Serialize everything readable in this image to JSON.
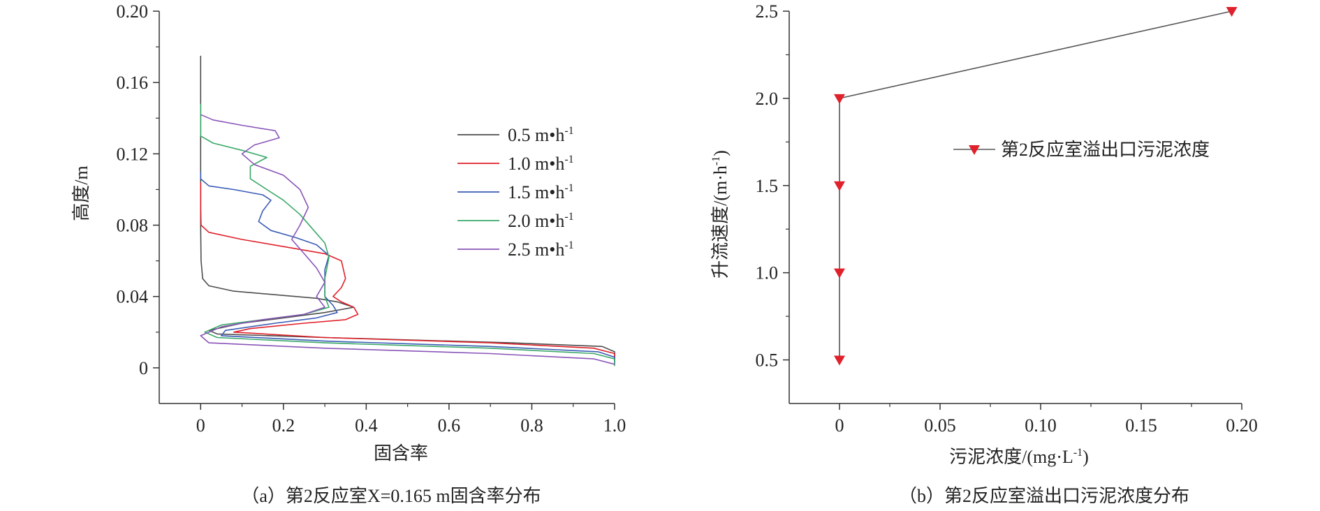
{
  "chart_data": [
    {
      "type": "line",
      "xlabel": "固含率",
      "ylabel": "高度/m",
      "xlim": [
        -0.1,
        1.0
      ],
      "ylim": [
        -0.02,
        0.2
      ],
      "xticks": [
        {
          "v": 0,
          "label": "0"
        },
        {
          "v": 0.2,
          "label": "0.2"
        },
        {
          "v": 0.4,
          "label": "0.4"
        },
        {
          "v": 0.6,
          "label": "0.6"
        },
        {
          "v": 0.8,
          "label": "0.8"
        },
        {
          "v": 1.0,
          "label": "1.0"
        }
      ],
      "yticks": [
        {
          "v": 0,
          "label": "0"
        },
        {
          "v": 0.04,
          "label": "0.04"
        },
        {
          "v": 0.08,
          "label": "0.08"
        },
        {
          "v": 0.12,
          "label": "0.12"
        },
        {
          "v": 0.16,
          "label": "0.16"
        },
        {
          "v": 0.2,
          "label": "0.20"
        }
      ],
      "legend_position": "top-right",
      "series": [
        {
          "name": "0.5 m•h",
          "name_sup": "-1",
          "color": "#4d4d4d",
          "points": [
            [
              0,
              0.175
            ],
            [
              0,
              0.12
            ],
            [
              0,
              0.08
            ],
            [
              0.001,
              0.06
            ],
            [
              0.005,
              0.05
            ],
            [
              0.02,
              0.046
            ],
            [
              0.08,
              0.043
            ],
            [
              0.18,
              0.041
            ],
            [
              0.28,
              0.039
            ],
            [
              0.33,
              0.037
            ],
            [
              0.37,
              0.034
            ],
            [
              0.3,
              0.031
            ],
            [
              0.2,
              0.028
            ],
            [
              0.1,
              0.025
            ],
            [
              0.02,
              0.021
            ],
            [
              0.04,
              0.019
            ],
            [
              0.3,
              0.017
            ],
            [
              0.75,
              0.014
            ],
            [
              0.97,
              0.012
            ],
            [
              1.0,
              0.009
            ],
            [
              1.0,
              0.003
            ]
          ]
        },
        {
          "name": "1.0 m•h",
          "name_sup": "-1",
          "color": "#e0202a",
          "points": [
            [
              0,
              0.104
            ],
            [
              0,
              0.09
            ],
            [
              0.001,
              0.08
            ],
            [
              0.02,
              0.076
            ],
            [
              0.1,
              0.072
            ],
            [
              0.2,
              0.068
            ],
            [
              0.3,
              0.064
            ],
            [
              0.34,
              0.06
            ],
            [
              0.345,
              0.055
            ],
            [
              0.35,
              0.05
            ],
            [
              0.34,
              0.045
            ],
            [
              0.32,
              0.04
            ],
            [
              0.34,
              0.037
            ],
            [
              0.37,
              0.034
            ],
            [
              0.38,
              0.03
            ],
            [
              0.35,
              0.027
            ],
            [
              0.25,
              0.025
            ],
            [
              0.12,
              0.022
            ],
            [
              0.08,
              0.02
            ],
            [
              0.3,
              0.017
            ],
            [
              0.7,
              0.014
            ],
            [
              0.95,
              0.011
            ],
            [
              1.0,
              0.008
            ],
            [
              1.0,
              0.004
            ]
          ]
        },
        {
          "name": "1.5 m•h",
          "name_sup": "-1",
          "color": "#3a5cb5",
          "points": [
            [
              0,
              0.11
            ],
            [
              0,
              0.106
            ],
            [
              0.02,
              0.102
            ],
            [
              0.08,
              0.1
            ],
            [
              0.15,
              0.097
            ],
            [
              0.17,
              0.094
            ],
            [
              0.15,
              0.088
            ],
            [
              0.14,
              0.082
            ],
            [
              0.17,
              0.077
            ],
            [
              0.23,
              0.073
            ],
            [
              0.28,
              0.069
            ],
            [
              0.31,
              0.063
            ],
            [
              0.3,
              0.055
            ],
            [
              0.3,
              0.045
            ],
            [
              0.3,
              0.04
            ],
            [
              0.32,
              0.035
            ],
            [
              0.33,
              0.031
            ],
            [
              0.28,
              0.028
            ],
            [
              0.18,
              0.025
            ],
            [
              0.06,
              0.021
            ],
            [
              0.05,
              0.018
            ],
            [
              0.3,
              0.015
            ],
            [
              0.7,
              0.012
            ],
            [
              0.96,
              0.009
            ],
            [
              1.0,
              0.006
            ],
            [
              1.0,
              0.002
            ]
          ]
        },
        {
          "name": "2.0 m•h",
          "name_sup": "-1",
          "color": "#3aa868",
          "points": [
            [
              0,
              0.148
            ],
            [
              0,
              0.135
            ],
            [
              0,
              0.13
            ],
            [
              0.03,
              0.126
            ],
            [
              0.1,
              0.122
            ],
            [
              0.16,
              0.118
            ],
            [
              0.12,
              0.113
            ],
            [
              0.12,
              0.106
            ],
            [
              0.16,
              0.1
            ],
            [
              0.2,
              0.094
            ],
            [
              0.24,
              0.086
            ],
            [
              0.27,
              0.078
            ],
            [
              0.3,
              0.07
            ],
            [
              0.31,
              0.062
            ],
            [
              0.3,
              0.05
            ],
            [
              0.3,
              0.04
            ],
            [
              0.31,
              0.034
            ],
            [
              0.25,
              0.03
            ],
            [
              0.15,
              0.027
            ],
            [
              0.05,
              0.024
            ],
            [
              0.01,
              0.02
            ],
            [
              0.04,
              0.017
            ],
            [
              0.3,
              0.014
            ],
            [
              0.7,
              0.011
            ],
            [
              0.95,
              0.008
            ],
            [
              1.0,
              0.005
            ],
            [
              1.0,
              0.001
            ]
          ]
        },
        {
          "name": "2.5 m•h",
          "name_sup": "-1",
          "color": "#8a55b8",
          "points": [
            [
              0,
              0.142
            ],
            [
              0.03,
              0.139
            ],
            [
              0.1,
              0.136
            ],
            [
              0.18,
              0.133
            ],
            [
              0.19,
              0.129
            ],
            [
              0.13,
              0.125
            ],
            [
              0.1,
              0.12
            ],
            [
              0.13,
              0.114
            ],
            [
              0.2,
              0.108
            ],
            [
              0.24,
              0.1
            ],
            [
              0.26,
              0.09
            ],
            [
              0.24,
              0.08
            ],
            [
              0.22,
              0.072
            ],
            [
              0.25,
              0.064
            ],
            [
              0.28,
              0.056
            ],
            [
              0.3,
              0.048
            ],
            [
              0.28,
              0.04
            ],
            [
              0.3,
              0.034
            ],
            [
              0.25,
              0.03
            ],
            [
              0.15,
              0.027
            ],
            [
              0.05,
              0.023
            ],
            [
              0,
              0.018
            ],
            [
              0.02,
              0.014
            ],
            [
              0.3,
              0.011
            ],
            [
              0.7,
              0.008
            ],
            [
              0.95,
              0.005
            ],
            [
              1.0,
              0.002
            ]
          ]
        }
      ]
    },
    {
      "type": "line",
      "xlabel": "污泥浓度/(mg·L",
      "xlabel_sup": "-1",
      "xlabel_end": ")",
      "ylabel": "升流速度/(m·h",
      "ylabel_sup": "-1",
      "ylabel_end": ")",
      "xlim": [
        -0.025,
        0.2
      ],
      "ylim": [
        0.25,
        2.5
      ],
      "xticks": [
        {
          "v": 0,
          "label": "0"
        },
        {
          "v": 0.05,
          "label": "0.05"
        },
        {
          "v": 0.1,
          "label": "0.10"
        },
        {
          "v": 0.15,
          "label": "0.15"
        },
        {
          "v": 0.2,
          "label": "0.20"
        }
      ],
      "yticks": [
        {
          "v": 0.5,
          "label": "0.5"
        },
        {
          "v": 1.0,
          "label": "1.0"
        },
        {
          "v": 1.5,
          "label": "1.5"
        },
        {
          "v": 2.0,
          "label": "2.0"
        },
        {
          "v": 2.5,
          "label": "2.5"
        }
      ],
      "legend_position": "top-right",
      "series": [
        {
          "name": "第2反应室溢出口污泥浓度",
          "color": "#555555",
          "marker_color": "#e0202a",
          "points": [
            [
              0,
              0.5
            ],
            [
              0,
              1.0
            ],
            [
              0,
              1.5
            ],
            [
              0,
              2.0
            ],
            [
              0.195,
              2.5
            ]
          ]
        }
      ]
    }
  ],
  "captions": {
    "a": "（a）第2反应室X=0.165 m固含率分布",
    "b": "（b）第2反应室溢出口污泥浓度分布"
  }
}
